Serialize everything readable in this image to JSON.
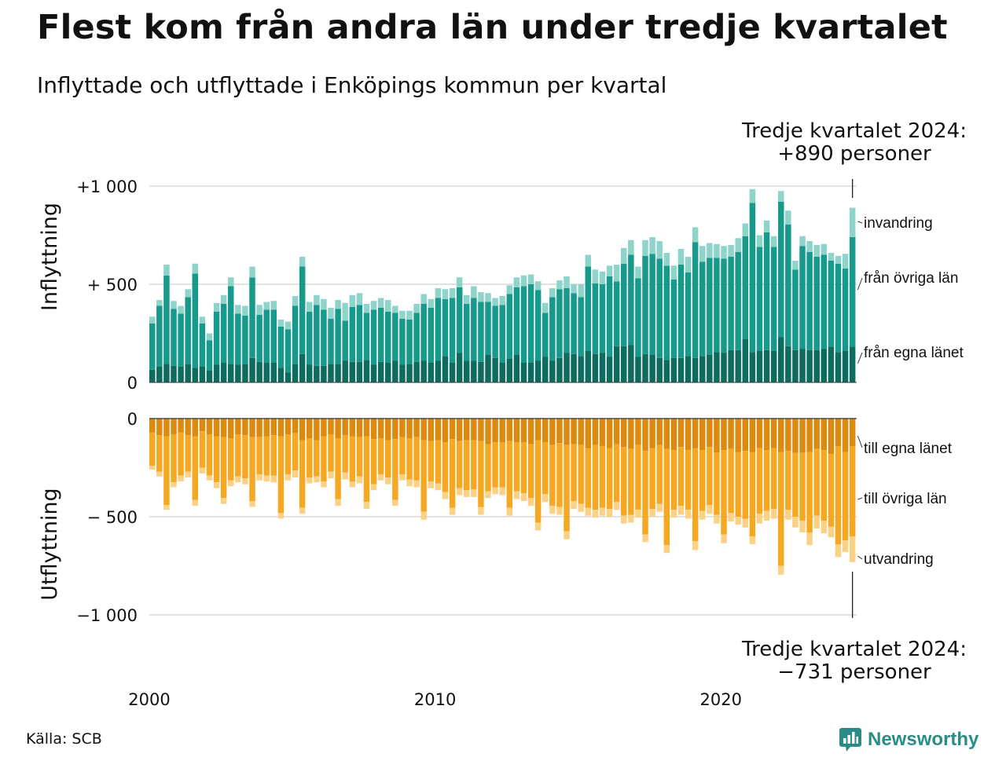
{
  "title": "Flest kom från andra län under tredje kvartalet",
  "subtitle": "Inflyttade och utflyttade i Enköpings kommun per kvartal",
  "source": "Källa: SCB",
  "brand": "Newsworthy",
  "annotations": {
    "top_line1": "Tredje kvartalet 2024:",
    "top_line2": "+890 personer",
    "bottom_line1": "Tredje kvartalet 2024:",
    "bottom_line2": "−731 personer"
  },
  "colors": {
    "in_own": "#0d6b5f",
    "in_other": "#179a8b",
    "in_imm": "#8fd4cb",
    "out_own": "#dd8a10",
    "out_other": "#f7a823",
    "out_emi": "#fbd285"
  },
  "chart_data": [
    {
      "type": "bar",
      "stacked": true,
      "ylabel": "Inflyttning",
      "ylim": [
        0,
        1000
      ],
      "yticks": [
        0,
        500,
        1000
      ],
      "yticklabels": [
        "0",
        "+  500",
        "+1 000"
      ],
      "xticks": [
        "2000",
        "2010",
        "2020"
      ],
      "x_start": "2000 Q1",
      "x_end": "2024 Q3",
      "series": [
        {
          "name": "från egna länet",
          "values": [
            65,
            80,
            95,
            85,
            80,
            95,
            75,
            80,
            60,
            90,
            100,
            95,
            90,
            95,
            125,
            105,
            100,
            100,
            75,
            50,
            95,
            145,
            90,
            85,
            85,
            95,
            95,
            110,
            105,
            105,
            115,
            90,
            105,
            100,
            110,
            90,
            95,
            105,
            110,
            100,
            110,
            135,
            100,
            150,
            110,
            110,
            105,
            140,
            125,
            100,
            120,
            140,
            100,
            100,
            110,
            130,
            110,
            125,
            150,
            145,
            135,
            160,
            145,
            150,
            130,
            185,
            185,
            190,
            130,
            145,
            140,
            125,
            115,
            125,
            125,
            135,
            125,
            135,
            140,
            155,
            150,
            165,
            165,
            220,
            155,
            160,
            165,
            160,
            230,
            185,
            165,
            170,
            165,
            165,
            170,
            180,
            155,
            160,
            180
          ]
        },
        {
          "name": "från övriga län",
          "values": [
            235,
            310,
            450,
            290,
            270,
            340,
            480,
            220,
            155,
            270,
            300,
            395,
            260,
            245,
            410,
            240,
            270,
            270,
            210,
            220,
            295,
            445,
            270,
            310,
            285,
            230,
            280,
            205,
            280,
            290,
            240,
            280,
            275,
            260,
            245,
            235,
            225,
            250,
            290,
            280,
            320,
            290,
            330,
            335,
            290,
            320,
            305,
            270,
            265,
            295,
            330,
            345,
            390,
            400,
            360,
            225,
            325,
            350,
            330,
            310,
            300,
            430,
            360,
            350,
            410,
            330,
            420,
            460,
            400,
            500,
            515,
            505,
            480,
            400,
            475,
            425,
            590,
            480,
            495,
            480,
            480,
            475,
            500,
            525,
            760,
            530,
            600,
            530,
            690,
            620,
            410,
            525,
            500,
            475,
            480,
            440,
            450,
            420,
            560
          ]
        },
        {
          "name": "invandring",
          "values": [
            35,
            30,
            55,
            40,
            40,
            40,
            50,
            35,
            35,
            45,
            45,
            45,
            45,
            50,
            55,
            50,
            40,
            45,
            35,
            40,
            50,
            50,
            50,
            50,
            55,
            55,
            45,
            90,
            60,
            60,
            45,
            45,
            50,
            60,
            35,
            40,
            45,
            45,
            50,
            45,
            50,
            50,
            50,
            50,
            45,
            60,
            50,
            45,
            40,
            45,
            45,
            50,
            55,
            50,
            45,
            50,
            45,
            45,
            60,
            45,
            65,
            60,
            70,
            65,
            55,
            85,
            80,
            75,
            60,
            80,
            85,
            90,
            65,
            70,
            80,
            80,
            75,
            80,
            75,
            70,
            65,
            60,
            70,
            65,
            70,
            60,
            60,
            55,
            55,
            70,
            45,
            50,
            55,
            60,
            55,
            40,
            40,
            75,
            150
          ]
        }
      ]
    },
    {
      "type": "bar",
      "stacked": true,
      "ylabel": "Utflyttning",
      "ylim": [
        -1000,
        0
      ],
      "yticks": [
        0,
        -500,
        -1000
      ],
      "yticklabels": [
        "0",
        "−  500",
        "−1 000"
      ],
      "series": [
        {
          "name": "till egna länet",
          "values": [
            -70,
            -85,
            -90,
            -80,
            -70,
            -85,
            -90,
            -65,
            -80,
            -90,
            -95,
            -100,
            -80,
            -85,
            -95,
            -95,
            -90,
            -85,
            -90,
            -80,
            -75,
            -110,
            -100,
            -110,
            -90,
            -80,
            -100,
            -85,
            -90,
            -95,
            -90,
            -105,
            -100,
            -110,
            -105,
            -95,
            -100,
            -95,
            -110,
            -115,
            -110,
            -120,
            -105,
            -115,
            -110,
            -110,
            -115,
            -130,
            -120,
            -120,
            -115,
            -120,
            -120,
            -130,
            -110,
            -120,
            -135,
            -125,
            -135,
            -130,
            -135,
            -150,
            -135,
            -140,
            -150,
            -130,
            -145,
            -155,
            -135,
            -165,
            -150,
            -135,
            -155,
            -160,
            -145,
            -160,
            -150,
            -160,
            -145,
            -175,
            -160,
            -155,
            -170,
            -165,
            -170,
            -150,
            -160,
            -150,
            -170,
            -165,
            -175,
            -175,
            -170,
            -155,
            -160,
            -180,
            -140,
            -170,
            -140
          ]
        },
        {
          "name": "till övriga län",
          "values": [
            -170,
            -185,
            -350,
            -245,
            -220,
            -185,
            -325,
            -185,
            -210,
            -235,
            -310,
            -215,
            -215,
            -220,
            -325,
            -190,
            -200,
            -205,
            -390,
            -205,
            -190,
            -345,
            -200,
            -185,
            -230,
            -190,
            -310,
            -190,
            -230,
            -200,
            -335,
            -230,
            -185,
            -190,
            -310,
            -190,
            -210,
            -220,
            -365,
            -205,
            -220,
            -255,
            -350,
            -240,
            -255,
            -250,
            -335,
            -240,
            -230,
            -230,
            -340,
            -250,
            -260,
            -275,
            -420,
            -265,
            -310,
            -325,
            -440,
            -290,
            -300,
            -305,
            -330,
            -315,
            -310,
            -295,
            -350,
            -335,
            -330,
            -425,
            -310,
            -300,
            -490,
            -305,
            -300,
            -305,
            -475,
            -310,
            -295,
            -315,
            -430,
            -325,
            -330,
            -345,
            -430,
            -335,
            -310,
            -310,
            -580,
            -300,
            -325,
            -345,
            -410,
            -340,
            -360,
            -370,
            -500,
            -450,
            -460
          ]
        },
        {
          "name": "utvandring",
          "values": [
            -20,
            -25,
            -25,
            -25,
            -30,
            -30,
            -30,
            -30,
            -25,
            -30,
            -30,
            -30,
            -30,
            -30,
            -30,
            -30,
            -30,
            -35,
            -30,
            -30,
            -35,
            -30,
            -30,
            -30,
            -30,
            -35,
            -35,
            -35,
            -30,
            -35,
            -35,
            -30,
            -30,
            -35,
            -30,
            -30,
            -35,
            -35,
            -40,
            -35,
            -35,
            -35,
            -35,
            -35,
            -35,
            -40,
            -40,
            -35,
            -35,
            -40,
            -40,
            -40,
            -40,
            -40,
            -40,
            -40,
            -40,
            -40,
            -40,
            -40,
            -40,
            -40,
            -40,
            -40,
            -40,
            -40,
            -40,
            -40,
            -40,
            -40,
            -40,
            -40,
            -40,
            -40,
            -45,
            -45,
            -45,
            -45,
            -45,
            -45,
            -45,
            -45,
            -40,
            -45,
            -40,
            -50,
            -50,
            -50,
            -45,
            -50,
            -55,
            -60,
            -65,
            -65,
            -65,
            -55,
            -65,
            -60,
            -131
          ]
        }
      ]
    }
  ]
}
